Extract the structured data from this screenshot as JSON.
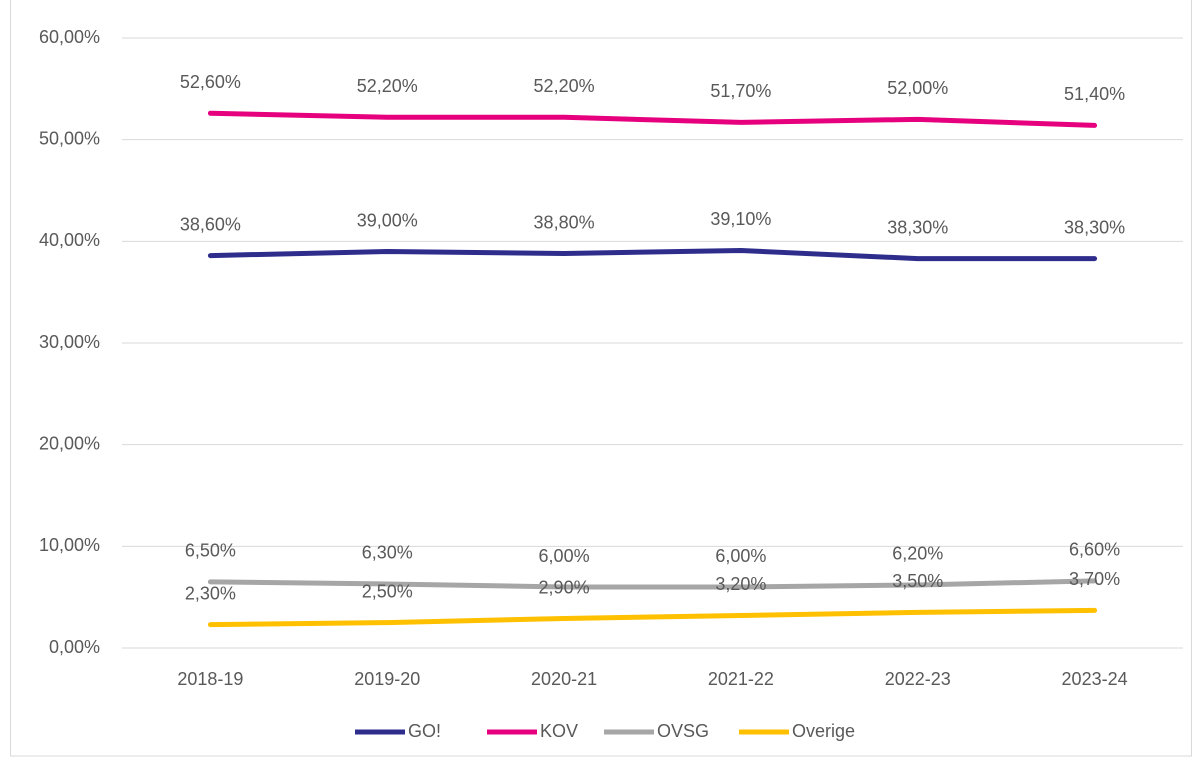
{
  "chart_data": {
    "type": "line",
    "categories": [
      "2018-19",
      "2019-20",
      "2020-21",
      "2021-22",
      "2022-23",
      "2023-24"
    ],
    "series": [
      {
        "name": "GO!",
        "color": "#2e2d8c",
        "values": [
          38.6,
          39.0,
          38.8,
          39.1,
          38.3,
          38.3
        ],
        "value_labels": [
          "38,60%",
          "39,00%",
          "38,80%",
          "39,10%",
          "38,30%",
          "38,30%"
        ]
      },
      {
        "name": "KOV",
        "color": "#e6007e",
        "values": [
          52.6,
          52.2,
          52.2,
          51.7,
          52.0,
          51.4
        ],
        "value_labels": [
          "52,60%",
          "52,20%",
          "52,20%",
          "51,70%",
          "52,00%",
          "51,40%"
        ]
      },
      {
        "name": "OVSG",
        "color": "#a6a6a6",
        "values": [
          6.5,
          6.3,
          6.0,
          6.0,
          6.2,
          6.6
        ],
        "value_labels": [
          "6,50%",
          "6,30%",
          "6,00%",
          "6,00%",
          "6,20%",
          "6,60%"
        ]
      },
      {
        "name": "Overige",
        "color": "#ffc000",
        "values": [
          2.3,
          2.5,
          2.9,
          3.2,
          3.5,
          3.7
        ],
        "value_labels": [
          "2,30%",
          "2,50%",
          "2,90%",
          "3,20%",
          "3,50%",
          "3,70%"
        ]
      }
    ],
    "ylim": [
      0,
      60
    ],
    "yticks": [
      {
        "value": 0,
        "label": "0,00%"
      },
      {
        "value": 10,
        "label": "10,00%"
      },
      {
        "value": 20,
        "label": "20,00%"
      },
      {
        "value": 30,
        "label": "30,00%"
      },
      {
        "value": 40,
        "label": "40,00%"
      },
      {
        "value": 50,
        "label": "50,00%"
      },
      {
        "value": 60,
        "label": "60,00%"
      }
    ],
    "grid": true,
    "legend": "bottom"
  }
}
